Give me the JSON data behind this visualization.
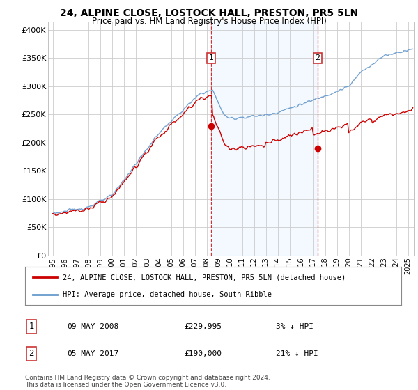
{
  "title_line1": "24, ALPINE CLOSE, LOSTOCK HALL, PRESTON, PR5 5LN",
  "title_line2": "Price paid vs. HM Land Registry's House Price Index (HPI)",
  "fig_bg_color": "#ffffff",
  "plot_bg_color": "#ffffff",
  "hpi_color": "#6699cc",
  "price_color": "#cc0000",
  "shade_color": "#ddeeff",
  "annotation1_date": "09-MAY-2008",
  "annotation1_price": 229995,
  "annotation1_price_str": "£229,995",
  "annotation1_pct": "3% ↓ HPI",
  "annotation2_date": "05-MAY-2017",
  "annotation2_price": 190000,
  "annotation2_price_str": "£190,000",
  "annotation2_pct": "21% ↓ HPI",
  "legend_label1": "24, ALPINE CLOSE, LOSTOCK HALL, PRESTON, PR5 5LN (detached house)",
  "legend_label2": "HPI: Average price, detached house, South Ribble",
  "footer": "Contains HM Land Registry data © Crown copyright and database right 2024.\nThis data is licensed under the Open Government Licence v3.0.",
  "yticks": [
    0,
    50000,
    100000,
    150000,
    200000,
    250000,
    300000,
    350000,
    400000
  ],
  "ytick_labels": [
    "£0",
    "£50K",
    "£100K",
    "£150K",
    "£200K",
    "£250K",
    "£300K",
    "£350K",
    "£400K"
  ],
  "ylim": [
    0,
    415000
  ],
  "sale1_x": 2008.37,
  "sale1_y": 229995,
  "sale2_x": 2017.37,
  "sale2_y": 190000,
  "xmin": 1994.6,
  "xmax": 2025.5
}
